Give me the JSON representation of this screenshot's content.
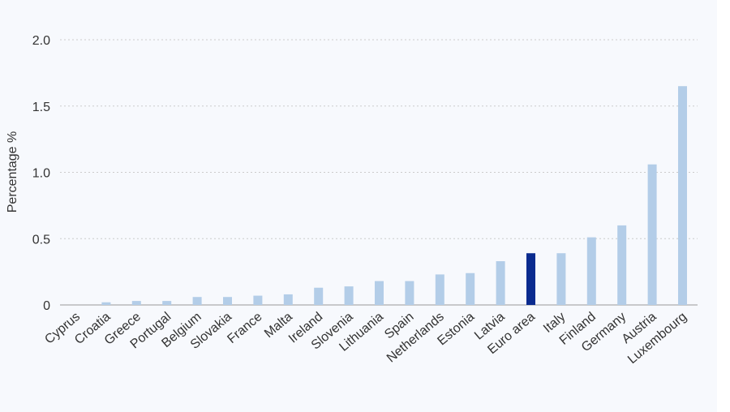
{
  "chart_data": {
    "type": "bar",
    "ylabel": "Percentage %",
    "ylim": [
      0,
      2.0
    ],
    "yticks": [
      "0",
      "0.5",
      "1.0",
      "1.5",
      "2.0"
    ],
    "grid": true,
    "categories": [
      "Cyprus",
      "Croatia",
      "Greece",
      "Portugal",
      "Belgium",
      "Slovakia",
      "France",
      "Malta",
      "Ireland",
      "Slovenia",
      "Lithuania",
      "Spain",
      "Netherlands",
      "Estonia",
      "Latvia",
      "Euro area",
      "Italy",
      "Finland",
      "Germany",
      "Austria",
      "Luxembourg"
    ],
    "values": [
      0.0,
      0.02,
      0.03,
      0.03,
      0.06,
      0.06,
      0.07,
      0.08,
      0.13,
      0.14,
      0.18,
      0.18,
      0.23,
      0.24,
      0.33,
      0.39,
      0.39,
      0.51,
      0.6,
      1.06,
      1.65
    ],
    "colors": {
      "bar": "#b3cde8",
      "highlight": "#0a2b8f",
      "grid": "#cccccc",
      "axis": "#999999"
    },
    "highlight_category": "Euro area"
  }
}
